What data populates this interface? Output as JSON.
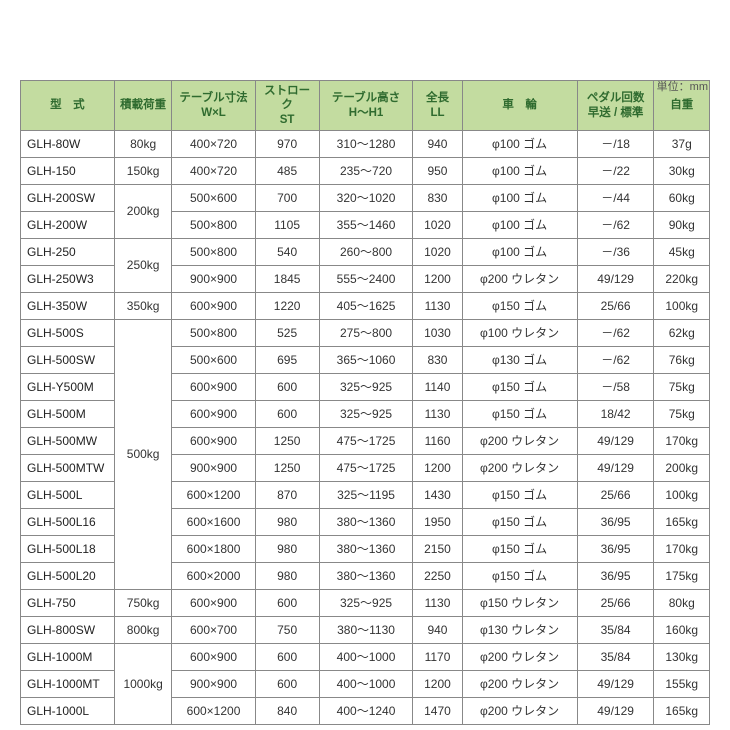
{
  "unit_label": "単位：mm",
  "columns": [
    {
      "l1": "型　式"
    },
    {
      "l1": "積載荷重"
    },
    {
      "l1": "テーブル寸法",
      "l2": "W×L"
    },
    {
      "l1": "ストローク",
      "l2": "ST"
    },
    {
      "l1": "テーブル高さ",
      "l2": "H～H1"
    },
    {
      "l1": "全長",
      "l2": "LL"
    },
    {
      "l1": "車　輪"
    },
    {
      "l1": "ペダル回数",
      "l2": "早送 / 標準"
    },
    {
      "l1": "自重"
    }
  ],
  "load_groups": [
    {
      "load": "80kg",
      "models": [
        "GLH-80W"
      ]
    },
    {
      "load": "150kg",
      "models": [
        "GLH-150"
      ]
    },
    {
      "load": "200kg",
      "models": [
        "GLH-200SW",
        "GLH-200W"
      ]
    },
    {
      "load": "250kg",
      "models": [
        "GLH-250",
        "GLH-250W3"
      ]
    },
    {
      "load": "350kg",
      "models": [
        "GLH-350W"
      ]
    },
    {
      "load": "500kg",
      "models": [
        "GLH-500S",
        "GLH-500SW",
        "GLH-Y500M",
        "GLH-500M",
        "GLH-500MW",
        "GLH-500MTW",
        "GLH-500L",
        "GLH-500L16",
        "GLH-500L18",
        "GLH-500L20"
      ]
    },
    {
      "load": "750kg",
      "models": [
        "GLH-750"
      ]
    },
    {
      "load": "800kg",
      "models": [
        "GLH-800SW"
      ]
    },
    {
      "load": "1000kg",
      "models": [
        "GLH-1000M",
        "GLH-1000MT",
        "GLH-1000L"
      ]
    }
  ],
  "rows": {
    "GLH-80W": {
      "size": "400×720",
      "stroke": "970",
      "height": "310～1280",
      "ll": "940",
      "wheel": "φ100 ゴム",
      "pedal": "－/18",
      "weight": "37g"
    },
    "GLH-150": {
      "size": "400×720",
      "stroke": "485",
      "height": "235～720",
      "ll": "950",
      "wheel": "φ100 ゴム",
      "pedal": "－/22",
      "weight": "30kg"
    },
    "GLH-200SW": {
      "size": "500×600",
      "stroke": "700",
      "height": "320～1020",
      "ll": "830",
      "wheel": "φ100 ゴム",
      "pedal": "－/44",
      "weight": "60kg"
    },
    "GLH-200W": {
      "size": "500×800",
      "stroke": "1105",
      "height": "355～1460",
      "ll": "1020",
      "wheel": "φ100 ゴム",
      "pedal": "－/62",
      "weight": "90kg"
    },
    "GLH-250": {
      "size": "500×800",
      "stroke": "540",
      "height": "260～800",
      "ll": "1020",
      "wheel": "φ100 ゴム",
      "pedal": "－/36",
      "weight": "45kg"
    },
    "GLH-250W3": {
      "size": "900×900",
      "stroke": "1845",
      "height": "555～2400",
      "ll": "1200",
      "wheel": "φ200 ウレタン",
      "pedal": "49/129",
      "weight": "220kg"
    },
    "GLH-350W": {
      "size": "600×900",
      "stroke": "1220",
      "height": "405～1625",
      "ll": "1130",
      "wheel": "φ150 ゴム",
      "pedal": "25/66",
      "weight": "100kg"
    },
    "GLH-500S": {
      "size": "500×800",
      "stroke": "525",
      "height": "275～800",
      "ll": "1030",
      "wheel": "φ100 ウレタン",
      "pedal": "－/62",
      "weight": "62kg"
    },
    "GLH-500SW": {
      "size": "500×600",
      "stroke": "695",
      "height": "365～1060",
      "ll": "830",
      "wheel": "φ130 ゴム",
      "pedal": "－/62",
      "weight": "76kg"
    },
    "GLH-Y500M": {
      "size": "600×900",
      "stroke": "600",
      "height": "325～925",
      "ll": "1140",
      "wheel": "φ150 ゴム",
      "pedal": "－/58",
      "weight": "75kg"
    },
    "GLH-500M": {
      "size": "600×900",
      "stroke": "600",
      "height": "325～925",
      "ll": "1130",
      "wheel": "φ150 ゴム",
      "pedal": "18/42",
      "weight": "75kg"
    },
    "GLH-500MW": {
      "size": "600×900",
      "stroke": "1250",
      "height": "475～1725",
      "ll": "1160",
      "wheel": "φ200 ウレタン",
      "pedal": "49/129",
      "weight": "170kg"
    },
    "GLH-500MTW": {
      "size": "900×900",
      "stroke": "1250",
      "height": "475～1725",
      "ll": "1200",
      "wheel": "φ200 ウレタン",
      "pedal": "49/129",
      "weight": "200kg"
    },
    "GLH-500L": {
      "size": "600×1200",
      "stroke": "870",
      "height": "325～1195",
      "ll": "1430",
      "wheel": "φ150 ゴム",
      "pedal": "25/66",
      "weight": "100kg"
    },
    "GLH-500L16": {
      "size": "600×1600",
      "stroke": "980",
      "height": "380～1360",
      "ll": "1950",
      "wheel": "φ150 ゴム",
      "pedal": "36/95",
      "weight": "165kg"
    },
    "GLH-500L18": {
      "size": "600×1800",
      "stroke": "980",
      "height": "380～1360",
      "ll": "2150",
      "wheel": "φ150 ゴム",
      "pedal": "36/95",
      "weight": "170kg"
    },
    "GLH-500L20": {
      "size": "600×2000",
      "stroke": "980",
      "height": "380～1360",
      "ll": "2250",
      "wheel": "φ150 ゴム",
      "pedal": "36/95",
      "weight": "175kg"
    },
    "GLH-750": {
      "size": "600×900",
      "stroke": "600",
      "height": "325～925",
      "ll": "1130",
      "wheel": "φ150 ウレタン",
      "pedal": "25/66",
      "weight": "80kg"
    },
    "GLH-800SW": {
      "size": "600×700",
      "stroke": "750",
      "height": "380～1130",
      "ll": "940",
      "wheel": "φ130 ウレタン",
      "pedal": "35/84",
      "weight": "160kg"
    },
    "GLH-1000M": {
      "size": "600×900",
      "stroke": "600",
      "height": "400～1000",
      "ll": "1170",
      "wheel": "φ200 ウレタン",
      "pedal": "35/84",
      "weight": "130kg"
    },
    "GLH-1000MT": {
      "size": "900×900",
      "stroke": "600",
      "height": "400～1000",
      "ll": "1200",
      "wheel": "φ200 ウレタン",
      "pedal": "49/129",
      "weight": "155kg"
    },
    "GLH-1000L": {
      "size": "600×1200",
      "stroke": "840",
      "height": "400～1240",
      "ll": "1470",
      "wheel": "φ200 ウレタン",
      "pedal": "49/129",
      "weight": "165kg"
    }
  },
  "colors": {
    "header_bg": "#c3dca0",
    "header_text": "#2f6b2f",
    "border": "#888888",
    "text": "#333333"
  }
}
